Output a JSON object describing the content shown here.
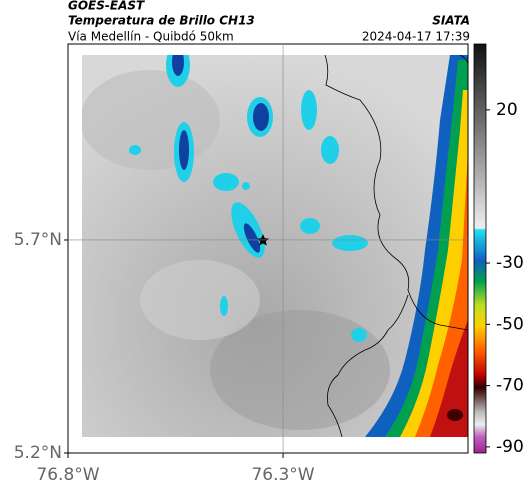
{
  "header": {
    "title": "GOES-EAST",
    "subtitle": "Temperatura de Brillo CH13",
    "source": "SIATA",
    "region": "Vía Medellín - Quibdó 50km",
    "timestamp": "2024-04-17 17:39"
  },
  "map": {
    "lonlim": [
      -76.8,
      -75.87
    ],
    "latlim": [
      5.2,
      6.16
    ],
    "xticks": [
      {
        "value": -76.8,
        "label": "76.8°W"
      },
      {
        "value": -76.3,
        "label": "76.3°W"
      }
    ],
    "yticks": [
      {
        "value": 5.2,
        "label": "5.2°N"
      },
      {
        "value": 5.7,
        "label": "5.7°N"
      }
    ],
    "grid": true
  },
  "colorbar": {
    "clim": [
      -92,
      41.5
    ],
    "ticks": [
      20,
      -30,
      -50,
      -70,
      -90
    ]
  }
}
